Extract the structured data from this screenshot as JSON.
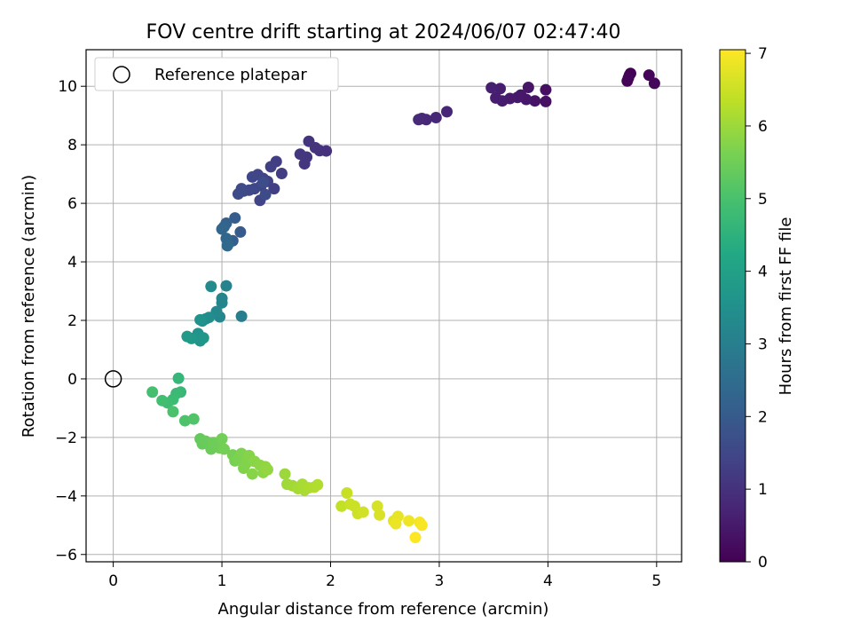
{
  "chart_data": {
    "type": "scatter",
    "title": "FOV centre drift starting at 2024/06/07 02:47:40",
    "xlabel": "Angular distance from reference (arcmin)",
    "ylabel": "Rotation from reference (arcmin)",
    "xlim": [
      -0.25,
      5.23
    ],
    "ylim": [
      -6.25,
      11.25
    ],
    "xticks": [
      0,
      1,
      2,
      3,
      4,
      5
    ],
    "yticks": [
      -6,
      -4,
      -2,
      0,
      2,
      4,
      6,
      8,
      10
    ],
    "grid": true,
    "legend": {
      "placement": "top-left",
      "entries": [
        "Reference platepar"
      ]
    },
    "reference_point": {
      "x": 0,
      "y": 0,
      "label": "Reference platepar"
    },
    "colorbar": {
      "label": "Hours from first FF file",
      "colormap": "viridis",
      "range": [
        0,
        7.05
      ],
      "ticks": [
        0,
        1,
        2,
        3,
        4,
        5,
        6,
        7
      ]
    },
    "points": [
      [
        4.76,
        10.44,
        0.0
      ],
      [
        4.75,
        10.38,
        0.02
      ],
      [
        4.73,
        10.18,
        0.05
      ],
      [
        4.74,
        10.28,
        0.08
      ],
      [
        4.93,
        10.38,
        0.1
      ],
      [
        4.98,
        10.1,
        0.12
      ],
      [
        3.98,
        9.88,
        0.3
      ],
      [
        3.98,
        9.48,
        0.33
      ],
      [
        3.88,
        9.5,
        0.36
      ],
      [
        3.82,
        9.96,
        0.4
      ],
      [
        3.8,
        9.55,
        0.42
      ],
      [
        3.75,
        9.7,
        0.45
      ],
      [
        3.72,
        9.62,
        0.48
      ],
      [
        3.65,
        9.58,
        0.5
      ],
      [
        3.58,
        9.5,
        0.53
      ],
      [
        3.56,
        9.92,
        0.56
      ],
      [
        3.52,
        9.6,
        0.58
      ],
      [
        3.48,
        9.95,
        0.6
      ],
      [
        3.07,
        9.13,
        0.75
      ],
      [
        2.97,
        8.93,
        0.78
      ],
      [
        2.88,
        8.86,
        0.8
      ],
      [
        2.84,
        8.9,
        0.82
      ],
      [
        2.81,
        8.86,
        0.85
      ],
      [
        1.96,
        7.79,
        1.0
      ],
      [
        1.9,
        7.8,
        1.02
      ],
      [
        1.86,
        7.9,
        1.04
      ],
      [
        1.8,
        8.12,
        1.06
      ],
      [
        1.78,
        7.58,
        1.08
      ],
      [
        1.76,
        7.35,
        1.1
      ],
      [
        1.72,
        7.68,
        1.12
      ],
      [
        1.55,
        7.02,
        1.25
      ],
      [
        1.5,
        7.43,
        1.28
      ],
      [
        1.48,
        6.5,
        1.3
      ],
      [
        1.45,
        7.25,
        1.32
      ],
      [
        1.42,
        6.75,
        1.35
      ],
      [
        1.38,
        6.85,
        1.38
      ],
      [
        1.36,
        6.6,
        1.4
      ],
      [
        1.35,
        6.1,
        1.42
      ],
      [
        1.33,
        6.98,
        1.45
      ],
      [
        1.3,
        6.5,
        1.48
      ],
      [
        1.28,
        6.9,
        1.5
      ],
      [
        1.25,
        6.45,
        1.52
      ],
      [
        1.2,
        6.42,
        1.55
      ],
      [
        1.18,
        6.5,
        1.58
      ],
      [
        1.15,
        6.32,
        1.6
      ],
      [
        1.4,
        6.3,
        1.62
      ],
      [
        1.38,
        6.72,
        1.65
      ],
      [
        1.17,
        5.02,
        2.0
      ],
      [
        1.12,
        5.5,
        2.05
      ],
      [
        1.1,
        4.72,
        2.1
      ],
      [
        1.06,
        4.62,
        2.15
      ],
      [
        1.04,
        5.32,
        2.2
      ],
      [
        1.02,
        5.2,
        2.25
      ],
      [
        1.0,
        5.12,
        2.3
      ],
      [
        1.04,
        4.8,
        2.35
      ],
      [
        1.05,
        4.55,
        2.4
      ],
      [
        1.18,
        2.14,
        3.0
      ],
      [
        1.04,
        3.18,
        3.1
      ],
      [
        1.0,
        2.75,
        3.15
      ],
      [
        1.0,
        2.6,
        3.2
      ],
      [
        0.98,
        2.12,
        3.25
      ],
      [
        0.95,
        2.3,
        3.3
      ],
      [
        0.9,
        3.16,
        3.35
      ],
      [
        0.88,
        2.1,
        3.4
      ],
      [
        0.85,
        2.05,
        3.45
      ],
      [
        0.82,
        1.98,
        3.5
      ],
      [
        0.8,
        2.02,
        3.55
      ],
      [
        0.78,
        1.55,
        3.6
      ],
      [
        0.8,
        1.3,
        3.65
      ],
      [
        0.83,
        1.4,
        3.7
      ],
      [
        0.72,
        1.38,
        3.75
      ],
      [
        0.68,
        1.45,
        3.8
      ],
      [
        0.6,
        0.02,
        4.65
      ],
      [
        0.62,
        -0.45,
        4.7
      ],
      [
        0.58,
        -0.5,
        4.75
      ],
      [
        0.55,
        -0.7,
        4.8
      ],
      [
        0.5,
        -0.82,
        4.85
      ],
      [
        0.45,
        -0.74,
        4.9
      ],
      [
        0.36,
        -0.45,
        4.95
      ],
      [
        0.55,
        -1.12,
        5.0
      ],
      [
        0.66,
        -1.43,
        5.05
      ],
      [
        0.74,
        -1.37,
        5.1
      ],
      [
        0.8,
        -2.05,
        5.35
      ],
      [
        0.82,
        -2.22,
        5.38
      ],
      [
        0.85,
        -2.13,
        5.42
      ],
      [
        0.9,
        -2.4,
        5.45
      ],
      [
        0.92,
        -2.18,
        5.48
      ],
      [
        0.98,
        -2.36,
        5.5
      ],
      [
        1.0,
        -2.05,
        5.52
      ],
      [
        1.02,
        -2.4,
        5.55
      ],
      [
        1.1,
        -2.6,
        5.58
      ],
      [
        1.12,
        -2.8,
        5.62
      ],
      [
        1.15,
        -2.72,
        5.65
      ],
      [
        1.18,
        -2.55,
        5.68
      ],
      [
        1.2,
        -3.05,
        5.7
      ],
      [
        1.22,
        -2.9,
        5.72
      ],
      [
        1.25,
        -2.62,
        5.75
      ],
      [
        1.28,
        -3.25,
        5.78
      ],
      [
        1.3,
        -2.82,
        5.8
      ],
      [
        1.35,
        -2.95,
        5.82
      ],
      [
        1.38,
        -3.2,
        5.85
      ],
      [
        1.4,
        -3.0,
        5.88
      ],
      [
        1.42,
        -3.1,
        5.9
      ],
      [
        1.58,
        -3.25,
        6.0
      ],
      [
        1.6,
        -3.6,
        6.03
      ],
      [
        1.65,
        -3.65,
        6.06
      ],
      [
        1.7,
        -3.75,
        6.1
      ],
      [
        1.74,
        -3.6,
        6.12
      ],
      [
        1.76,
        -3.8,
        6.15
      ],
      [
        1.8,
        -3.72,
        6.18
      ],
      [
        1.85,
        -3.7,
        6.2
      ],
      [
        1.88,
        -3.62,
        6.22
      ],
      [
        2.1,
        -4.35,
        6.4
      ],
      [
        2.15,
        -3.9,
        6.45
      ],
      [
        2.18,
        -4.28,
        6.48
      ],
      [
        2.22,
        -4.35,
        6.5
      ],
      [
        2.25,
        -4.6,
        6.52
      ],
      [
        2.3,
        -4.55,
        6.55
      ],
      [
        2.43,
        -4.35,
        6.62
      ],
      [
        2.45,
        -4.65,
        6.65
      ],
      [
        2.58,
        -4.85,
        6.75
      ],
      [
        2.62,
        -4.7,
        6.8
      ],
      [
        2.6,
        -4.95,
        6.85
      ],
      [
        2.72,
        -4.85,
        6.9
      ],
      [
        2.82,
        -4.9,
        6.95
      ],
      [
        2.84,
        -5.0,
        7.0
      ],
      [
        2.78,
        -5.42,
        7.05
      ]
    ]
  }
}
